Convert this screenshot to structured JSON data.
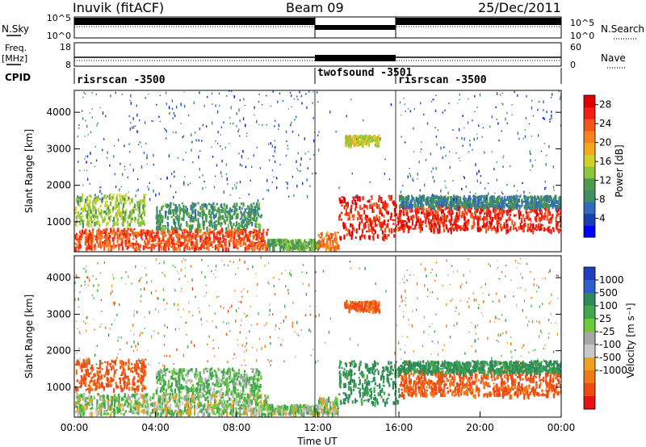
{
  "header": {
    "station": "Inuvik (fitACF)",
    "beam": "Beam 09",
    "date": "25/Dec/2011"
  },
  "params": {
    "nsky_label": "N.Sky",
    "nsky_ticks": [
      "10^5",
      "10^0"
    ],
    "nsearch_label": "N.Search",
    "nsearch_ticks": [
      "10^5",
      "10^0"
    ],
    "freq_label": "Freq.",
    "freq_unit": "[MHz]",
    "freq_ticks": [
      "18",
      "8"
    ],
    "nave_label": "Nave",
    "nave_ticks": [
      "60",
      "0"
    ],
    "cpid_label": "CPID",
    "cpid_segments": [
      {
        "name": "risrscan -3500",
        "start": "00:00",
        "end": "12:00"
      },
      {
        "name": "twofsound -3501",
        "start": "12:00",
        "end": "16:00"
      },
      {
        "name": "risrscan -3500",
        "start": "16:00",
        "end": "24:00"
      }
    ]
  },
  "chart_data": [
    {
      "type": "heatmap",
      "panel": "power",
      "xlabel": "Time UT",
      "ylabel": "Slant Range [km]",
      "x_ticks": [
        "00:00",
        "04:00",
        "08:00",
        "12:00",
        "16:00",
        "20:00",
        "00:00"
      ],
      "xlim_hours": [
        0,
        24
      ],
      "ylim": [
        180,
        4600
      ],
      "y_ticks": [
        1000,
        2000,
        3000,
        4000
      ],
      "colorbar": {
        "label": "Power [dB]",
        "ticks": [
          4,
          8,
          12,
          16,
          20,
          24,
          28
        ],
        "range": [
          0,
          30
        ],
        "colors": [
          "#0000ff",
          "#1a3fb0",
          "#2f6ac0",
          "#3f8f64",
          "#4f9a4a",
          "#8cc43c",
          "#cfd12c",
          "#f2a818",
          "#f58220",
          "#f4561a",
          "#ef1f14",
          "#e00000"
        ]
      },
      "regions": [
        {
          "t0": 0.0,
          "t1": 3.5,
          "r0": 900,
          "r1": 1750,
          "value": 14
        },
        {
          "t0": 0.0,
          "t1": 9.5,
          "r0": 240,
          "r1": 800,
          "value": 24
        },
        {
          "t0": 4.0,
          "t1": 9.2,
          "r0": 800,
          "r1": 1500,
          "value": 10
        },
        {
          "t0": 9.5,
          "t1": 12.0,
          "r0": 250,
          "r1": 500,
          "value": 12
        },
        {
          "t0": 12.0,
          "t1": 13.0,
          "r0": 250,
          "r1": 700,
          "value": 22
        },
        {
          "t0": 13.0,
          "t1": 16.0,
          "r0": 550,
          "r1": 1700,
          "value": 26
        },
        {
          "t0": 13.3,
          "t1": 15.0,
          "r0": 3100,
          "r1": 3350,
          "value": 16
        },
        {
          "t0": 16.0,
          "t1": 24.0,
          "r0": 750,
          "r1": 1450,
          "value": 26
        },
        {
          "t0": 16.0,
          "t1": 24.0,
          "r0": 1400,
          "r1": 1700,
          "value": 8
        }
      ]
    },
    {
      "type": "heatmap",
      "panel": "velocity",
      "xlabel": "Time UT",
      "ylabel": "Slant Range [km]",
      "x_ticks": [
        "00:00",
        "04:00",
        "08:00",
        "12:00",
        "16:00",
        "20:00",
        "00:00"
      ],
      "xlim_hours": [
        0,
        24
      ],
      "ylim": [
        180,
        4600
      ],
      "y_ticks": [
        1000,
        2000,
        3000,
        4000
      ],
      "colorbar": {
        "label": "Velocity [m s⁻¹]",
        "tick_labels": [
          "1000",
          "500",
          "100",
          "25",
          "-25",
          "-100",
          "-500",
          "-1000"
        ],
        "colors": [
          "#1f3fbf",
          "#2d5ec9",
          "#2f8a5a",
          "#3fa84a",
          "#6bc93c",
          "#a6a6a6",
          "#c8c8c8",
          "#f0a020",
          "#f07a18",
          "#f04a14",
          "#e81010"
        ]
      },
      "regions": [
        {
          "t0": 0.0,
          "t1": 3.5,
          "r0": 900,
          "r1": 1750,
          "value": -300
        },
        {
          "t0": 0.0,
          "t1": 9.5,
          "r0": 240,
          "r1": 800,
          "value": 50
        },
        {
          "t0": 4.0,
          "t1": 9.2,
          "r0": 800,
          "r1": 1500,
          "value": 120
        },
        {
          "t0": 9.5,
          "t1": 12.0,
          "r0": 250,
          "r1": 500,
          "value": 60
        },
        {
          "t0": 12.0,
          "t1": 13.0,
          "r0": 250,
          "r1": 700,
          "value": 40
        },
        {
          "t0": 13.0,
          "t1": 16.0,
          "r0": 550,
          "r1": 1700,
          "value": 300
        },
        {
          "t0": 13.3,
          "t1": 15.0,
          "r0": 3100,
          "r1": 3350,
          "value": -300
        },
        {
          "t0": 16.0,
          "t1": 24.0,
          "r0": 750,
          "r1": 1450,
          "value": -300
        },
        {
          "t0": 16.0,
          "t1": 24.0,
          "r0": 1400,
          "r1": 1700,
          "value": 300
        }
      ]
    }
  ]
}
